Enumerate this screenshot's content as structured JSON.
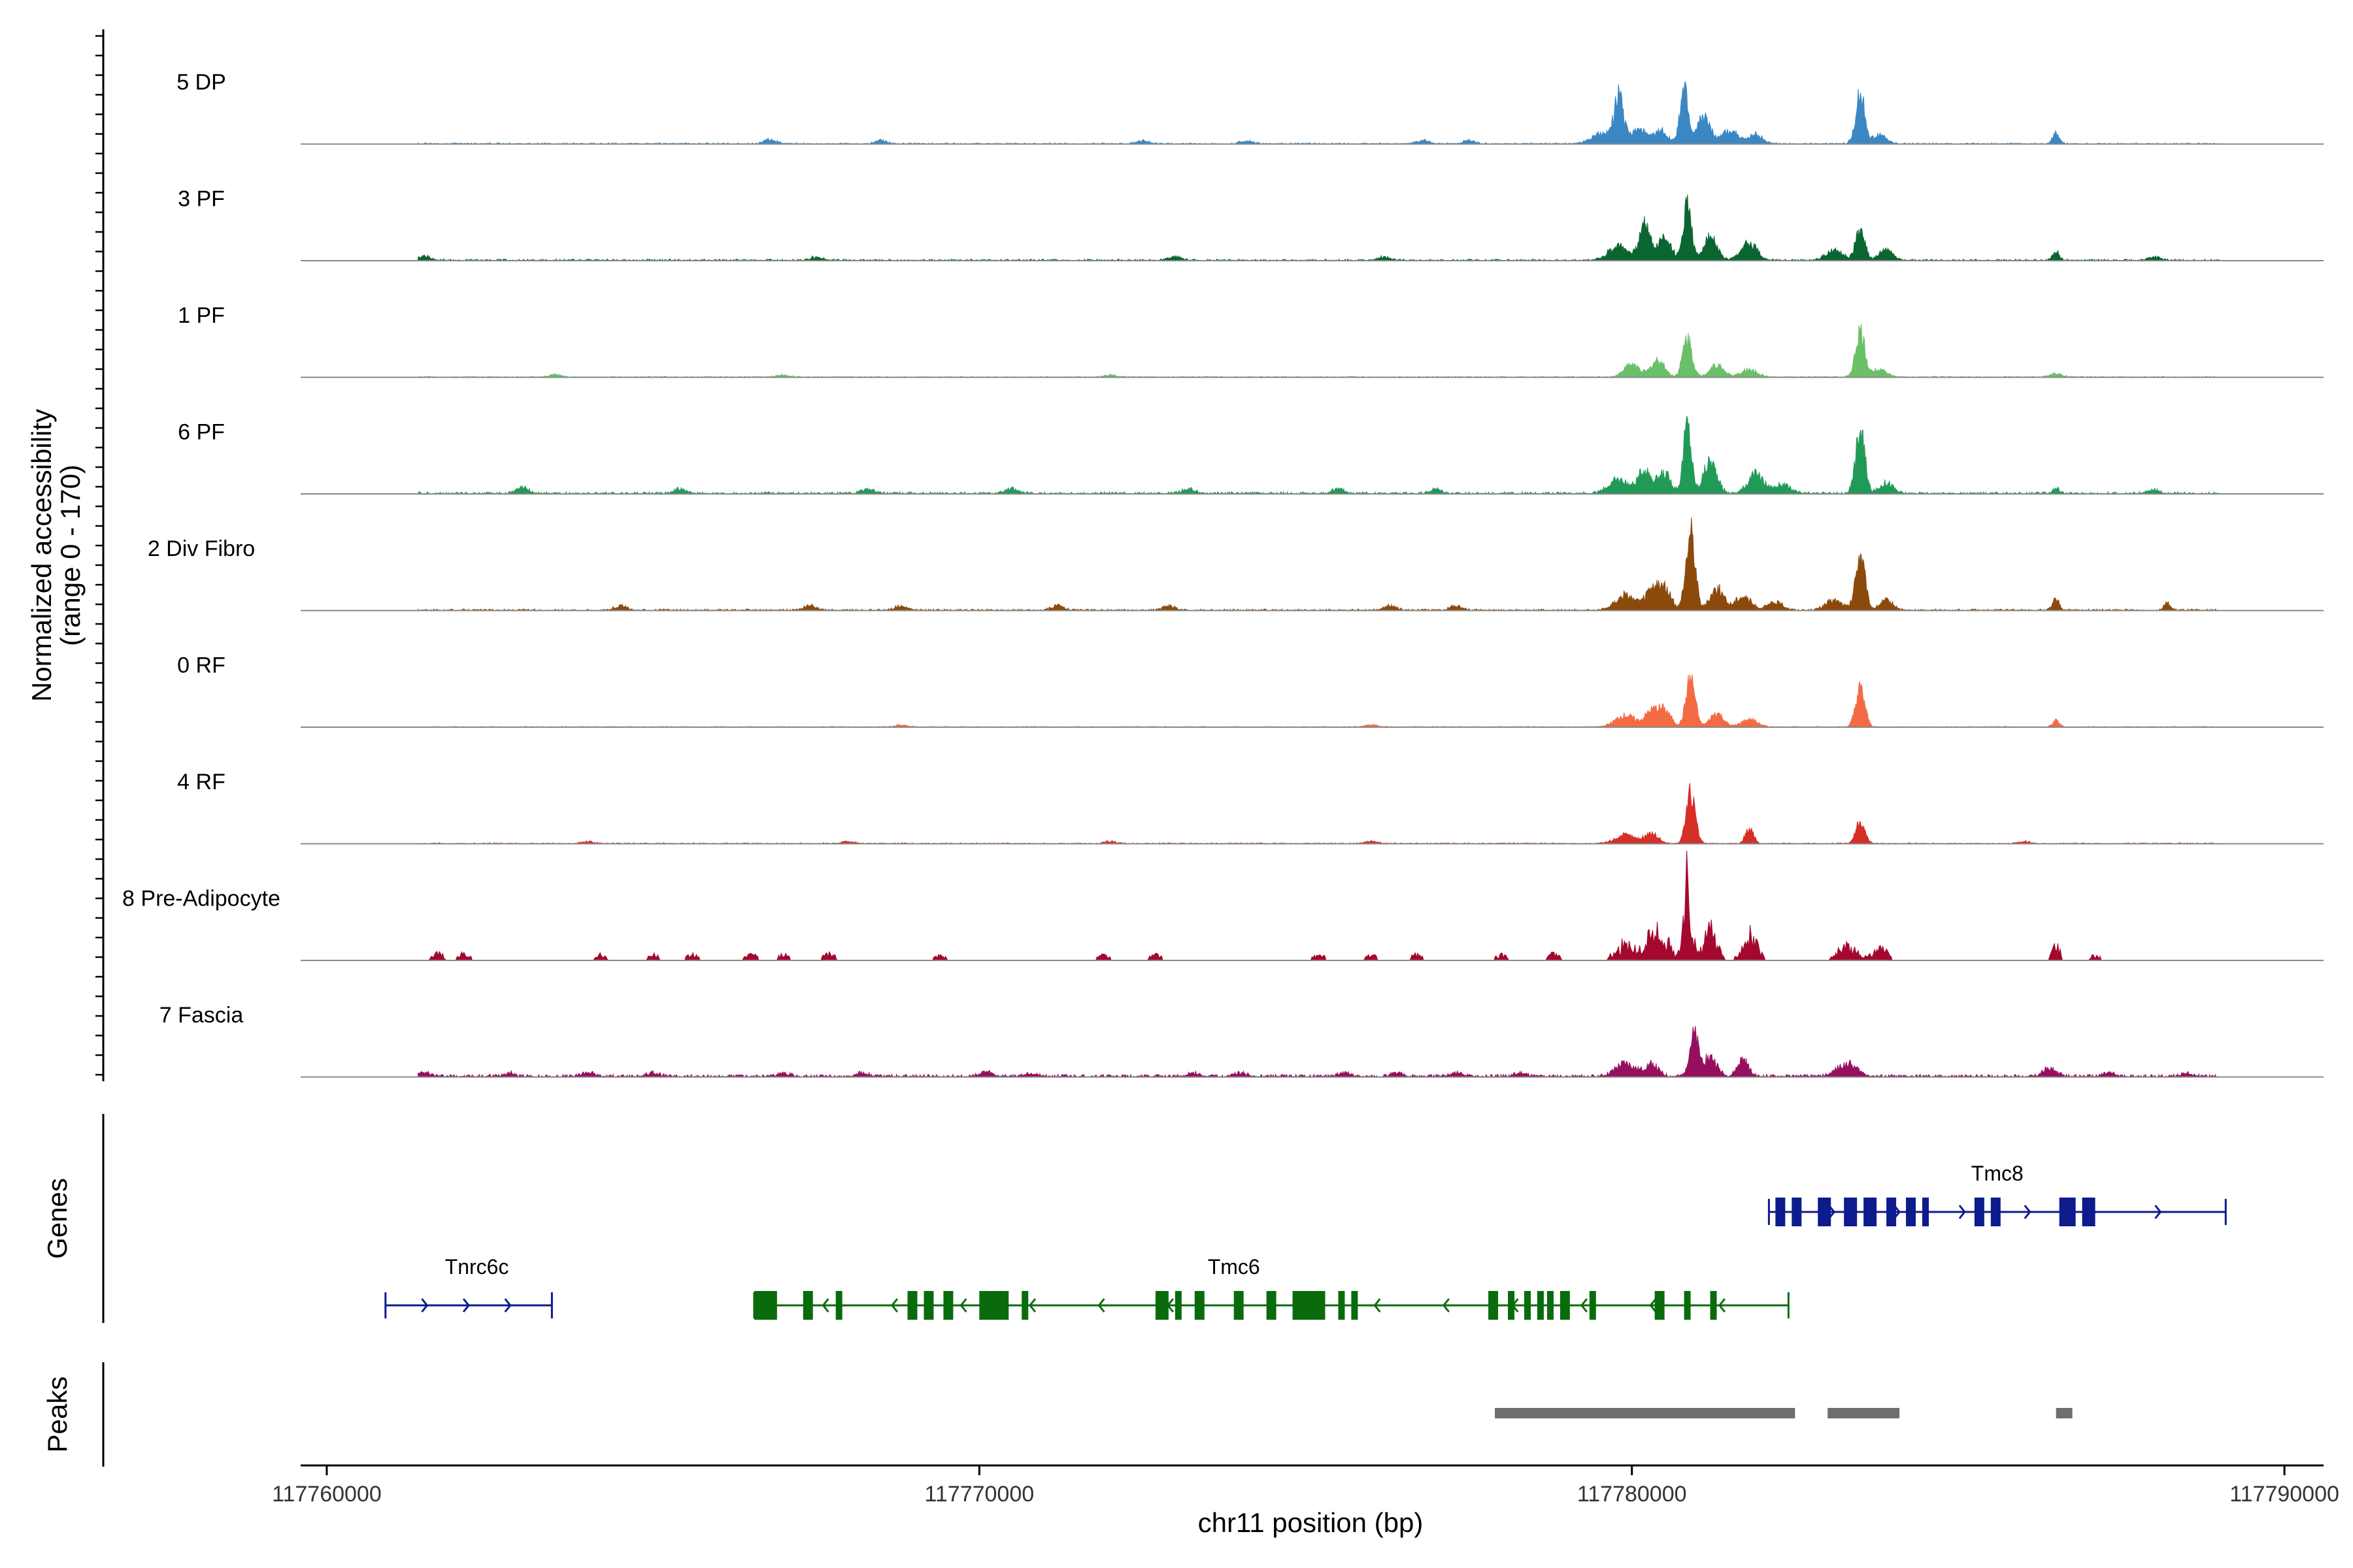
{
  "chart_data": {
    "type": "area",
    "title": "",
    "ylabel_line1": "Normalized accessibility",
    "ylabel_line2": "(range 0 - 170)",
    "y_range": [
      0,
      170
    ],
    "xlabel": "chr11 position (bp)",
    "x_range": [
      117759600,
      117790600
    ],
    "x_ticks": [
      117760000,
      117770000,
      117780000,
      117790000
    ],
    "x_tick_labels": [
      "117760000",
      "117770000",
      "117780000",
      "117790000"
    ],
    "track_span": [
      117761400,
      117789000
    ],
    "genes_label": "Genes",
    "peaks_label": "Peaks",
    "tracks": [
      {
        "name": "5 DP",
        "color": "#3a87c4",
        "spiky": false,
        "peaks": [
          [
            117779800,
            0.43,
            70
          ],
          [
            117779550,
            0.1,
            160
          ],
          [
            117780100,
            0.14,
            120
          ],
          [
            117780800,
            0.53,
            60
          ],
          [
            117780450,
            0.12,
            100
          ],
          [
            117781100,
            0.25,
            100
          ],
          [
            117781500,
            0.13,
            120
          ],
          [
            117781900,
            0.09,
            100
          ],
          [
            117783500,
            0.47,
            70
          ],
          [
            117783800,
            0.08,
            100
          ],
          [
            117786500,
            0.1,
            50
          ]
        ],
        "bumps": [
          [
            117766800,
            0.04
          ],
          [
            117768500,
            0.03
          ],
          [
            117772500,
            0.03
          ],
          [
            117774100,
            0.03
          ],
          [
            117776800,
            0.03
          ],
          [
            117777500,
            0.03
          ]
        ],
        "noise": 0.012
      },
      {
        "name": "3 PF",
        "color": "#0b6530",
        "spiky": false,
        "peaks": [
          [
            117779800,
            0.14,
            150
          ],
          [
            117780200,
            0.34,
            80
          ],
          [
            117780850,
            0.56,
            60
          ],
          [
            117780500,
            0.22,
            100
          ],
          [
            117781200,
            0.22,
            100
          ],
          [
            117781800,
            0.16,
            120
          ],
          [
            117783500,
            0.29,
            70
          ],
          [
            117783100,
            0.09,
            130
          ],
          [
            117783900,
            0.1,
            100
          ],
          [
            117786500,
            0.08,
            50
          ]
        ],
        "bumps": [
          [
            117761500,
            0.04
          ],
          [
            117767500,
            0.03
          ],
          [
            117773000,
            0.03
          ],
          [
            117776200,
            0.03
          ],
          [
            117788000,
            0.03
          ]
        ],
        "noise": 0.015
      },
      {
        "name": "1 PF",
        "color": "#6abf69",
        "spiky": false,
        "peaks": [
          [
            117780000,
            0.12,
            120
          ],
          [
            117780400,
            0.16,
            100
          ],
          [
            117780850,
            0.37,
            70
          ],
          [
            117781300,
            0.11,
            110
          ],
          [
            117781800,
            0.07,
            120
          ],
          [
            117783500,
            0.42,
            70
          ],
          [
            117783800,
            0.08,
            100
          ]
        ],
        "bumps": [
          [
            117763500,
            0.02
          ],
          [
            117767000,
            0.02
          ],
          [
            117772000,
            0.02
          ],
          [
            117786500,
            0.03
          ]
        ],
        "noise": 0.01
      },
      {
        "name": "6 PF",
        "color": "#229a57",
        "spiky": false,
        "peaks": [
          [
            117779800,
            0.13,
            150
          ],
          [
            117780200,
            0.22,
            100
          ],
          [
            117780850,
            0.65,
            60
          ],
          [
            117780500,
            0.18,
            100
          ],
          [
            117781200,
            0.3,
            100
          ],
          [
            117781900,
            0.18,
            120
          ],
          [
            117782300,
            0.08,
            120
          ],
          [
            117783500,
            0.59,
            70
          ],
          [
            117783900,
            0.1,
            100
          ],
          [
            117786500,
            0.05,
            50
          ]
        ],
        "bumps": [
          [
            117761200,
            0.04
          ],
          [
            117763000,
            0.05
          ],
          [
            117765400,
            0.04
          ],
          [
            117768300,
            0.04
          ],
          [
            117770500,
            0.04
          ],
          [
            117773200,
            0.04
          ],
          [
            117775500,
            0.04
          ],
          [
            117777000,
            0.04
          ],
          [
            117788000,
            0.03
          ]
        ],
        "noise": 0.02
      },
      {
        "name": "2 Div Fibro",
        "color": "#8b4a0c",
        "spiky": false,
        "peaks": [
          [
            117779900,
            0.14,
            150
          ],
          [
            117780300,
            0.17,
            100
          ],
          [
            117780900,
            0.75,
            70
          ],
          [
            117780500,
            0.2,
            100
          ],
          [
            117781300,
            0.21,
            100
          ],
          [
            117781700,
            0.13,
            120
          ],
          [
            117782200,
            0.07,
            120
          ],
          [
            117783500,
            0.53,
            70
          ],
          [
            117783100,
            0.09,
            130
          ],
          [
            117783900,
            0.09,
            100
          ],
          [
            117786500,
            0.1,
            50
          ],
          [
            117788200,
            0.06,
            50
          ]
        ],
        "bumps": [
          [
            117764500,
            0.04
          ],
          [
            117767400,
            0.04
          ],
          [
            117768800,
            0.04
          ],
          [
            117771200,
            0.04
          ],
          [
            117772900,
            0.04
          ],
          [
            117776300,
            0.04
          ],
          [
            117777300,
            0.04
          ]
        ],
        "noise": 0.015
      },
      {
        "name": "0 RF",
        "color": "#f26b45",
        "spiky": false,
        "peaks": [
          [
            117779900,
            0.11,
            150
          ],
          [
            117780300,
            0.14,
            100
          ],
          [
            117780900,
            0.46,
            70
          ],
          [
            117780500,
            0.15,
            100
          ],
          [
            117781300,
            0.13,
            100
          ],
          [
            117781800,
            0.07,
            120
          ],
          [
            117783500,
            0.36,
            70
          ],
          [
            117786500,
            0.06,
            50
          ]
        ],
        "bumps": [
          [
            117768800,
            0.02
          ],
          [
            117776000,
            0.02
          ]
        ],
        "noise": 0.008
      },
      {
        "name": "4 RF",
        "color": "#d62f28",
        "spiky": false,
        "peaks": [
          [
            117779900,
            0.08,
            150
          ],
          [
            117780300,
            0.1,
            100
          ],
          [
            117780900,
            0.47,
            70
          ],
          [
            117781800,
            0.14,
            60
          ],
          [
            117783500,
            0.2,
            70
          ]
        ],
        "bumps": [
          [
            117764000,
            0.02
          ],
          [
            117768000,
            0.02
          ],
          [
            117772000,
            0.02
          ],
          [
            117776000,
            0.02
          ],
          [
            117786000,
            0.02
          ]
        ],
        "noise": 0.01
      },
      {
        "name": "8 Pre-Adipocyte",
        "color": "#a4082f",
        "spiky": true,
        "peaks": [
          [
            117779900,
            0.18,
            150
          ],
          [
            117780300,
            0.27,
            100
          ],
          [
            117780850,
            0.98,
            60
          ],
          [
            117780500,
            0.22,
            100
          ],
          [
            117781200,
            0.32,
            100
          ],
          [
            117781800,
            0.3,
            110
          ],
          [
            117783300,
            0.15,
            150
          ],
          [
            117783800,
            0.15,
            100
          ],
          [
            117786500,
            0.22,
            50
          ]
        ],
        "bumps": [
          [
            117761700,
            0.08
          ],
          [
            117762100,
            0.07
          ],
          [
            117764200,
            0.06
          ],
          [
            117765000,
            0.06
          ],
          [
            117765600,
            0.06
          ],
          [
            117766500,
            0.07
          ],
          [
            117767000,
            0.06
          ],
          [
            117767700,
            0.07
          ],
          [
            117769400,
            0.06
          ],
          [
            117771900,
            0.06
          ],
          [
            117772700,
            0.06
          ],
          [
            117775200,
            0.06
          ],
          [
            117776000,
            0.06
          ],
          [
            117776700,
            0.06
          ],
          [
            117778000,
            0.06
          ],
          [
            117778800,
            0.07
          ],
          [
            117787100,
            0.05
          ]
        ],
        "noise": 0.0
      },
      {
        "name": "7 Fascia",
        "color": "#960f5e",
        "spiky": false,
        "peaks": [
          [
            117779900,
            0.12,
            150
          ],
          [
            117780300,
            0.11,
            100
          ],
          [
            117780950,
            0.38,
            70
          ],
          [
            117781200,
            0.18,
            100
          ],
          [
            117781700,
            0.16,
            80
          ],
          [
            117783300,
            0.12,
            150
          ],
          [
            117786400,
            0.07,
            100
          ]
        ],
        "bumps": [
          [
            117761500,
            0.03
          ],
          [
            117762800,
            0.03
          ],
          [
            117764000,
            0.04
          ],
          [
            117765000,
            0.03
          ],
          [
            117767000,
            0.03
          ],
          [
            117768200,
            0.03
          ],
          [
            117770100,
            0.04
          ],
          [
            117770800,
            0.03
          ],
          [
            117773300,
            0.03
          ],
          [
            117774000,
            0.03
          ],
          [
            117775600,
            0.03
          ],
          [
            117776400,
            0.03
          ],
          [
            117777300,
            0.03
          ],
          [
            117778300,
            0.03
          ],
          [
            117787300,
            0.03
          ],
          [
            117788500,
            0.03
          ]
        ],
        "noise": 0.025
      }
    ],
    "genes": [
      {
        "name": "Tnrc6c",
        "strand": "+",
        "row": 2,
        "color": "#0d1b8c",
        "start": 117760900,
        "end": 117763450,
        "exons": [],
        "label_x": 117762300
      },
      {
        "name": "Tmc6",
        "strand": "-",
        "row": 2,
        "color": "#0a6b0d",
        "start": 117766550,
        "end": 117782400,
        "label_x": 117773900,
        "exons": [
          [
            117766550,
            117766900
          ],
          [
            117767300,
            117767450
          ],
          [
            117767800,
            117767870
          ],
          [
            117768900,
            117769050
          ],
          [
            117769150,
            117769300
          ],
          [
            117769450,
            117769600
          ],
          [
            117770000,
            117770450
          ],
          [
            117770650,
            117770750
          ],
          [
            117772700,
            117772900
          ],
          [
            117773000,
            117773100
          ],
          [
            117773300,
            117773450
          ],
          [
            117773900,
            117774050
          ],
          [
            117774400,
            117774550
          ],
          [
            117774800,
            117775300
          ],
          [
            117775500,
            117775600
          ],
          [
            117775700,
            117775800
          ],
          [
            117777800,
            117777950
          ],
          [
            117778100,
            117778200
          ],
          [
            117778350,
            117778450
          ],
          [
            117778550,
            117778600
          ],
          [
            117778700,
            117778800
          ],
          [
            117778900,
            117779050
          ],
          [
            117779350,
            117779450
          ],
          [
            117780350,
            117780500
          ],
          [
            117780800,
            117780850
          ],
          [
            117781200,
            117781300
          ]
        ]
      },
      {
        "name": "Tmc8",
        "strand": "+",
        "row": 1,
        "color": "#0d1b8c",
        "start": 117782100,
        "end": 117789100,
        "label_x": 117785600,
        "exons": [
          [
            117782200,
            117782350
          ],
          [
            117782450,
            117782600
          ],
          [
            117782850,
            117783050
          ],
          [
            117783250,
            117783450
          ],
          [
            117783550,
            117783750
          ],
          [
            117783900,
            117784050
          ],
          [
            117784200,
            117784350
          ],
          [
            117784450,
            117784550
          ],
          [
            117785250,
            117785400
          ],
          [
            117785500,
            117785650
          ],
          [
            117786550,
            117786800
          ],
          [
            117786900,
            117787100
          ]
        ]
      }
    ],
    "peak_regions": [
      [
        117777900,
        117782500
      ],
      [
        117783000,
        117784100
      ],
      [
        117786500,
        117786750
      ]
    ]
  }
}
